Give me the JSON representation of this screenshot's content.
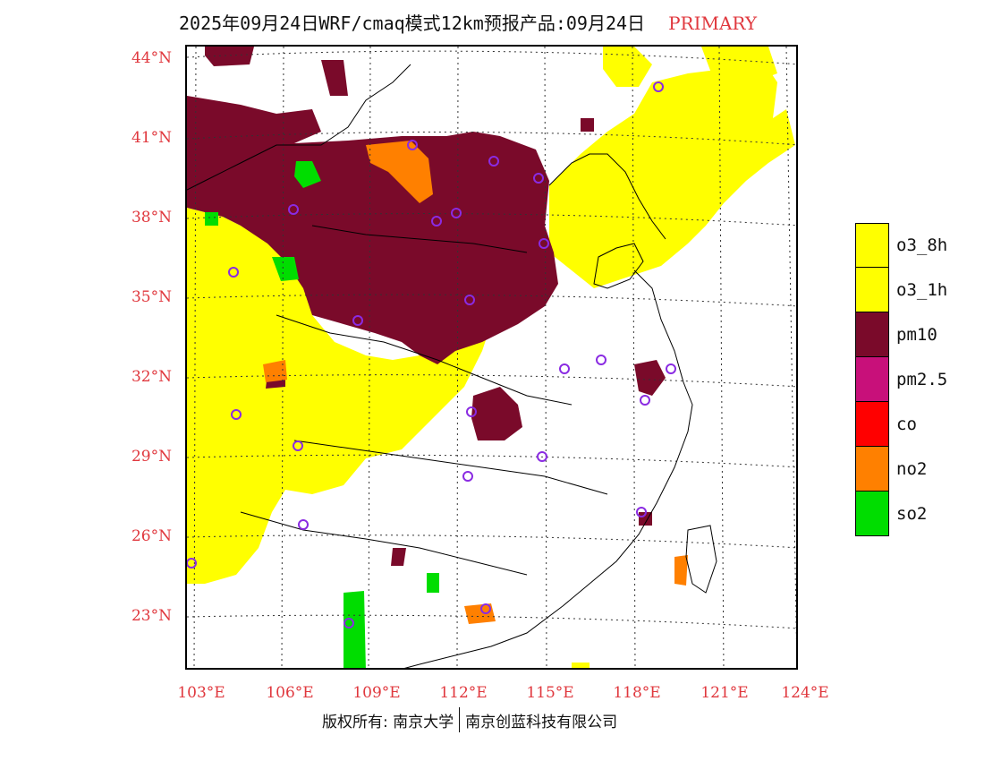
{
  "title": {
    "main": "2025年09月24日WRF/cmaq模式12km预报产品:09月24日",
    "status": "PRIMARY"
  },
  "colors": {
    "status": "#e0383e",
    "axis_label": "#e0383e",
    "o3_8h": "#ffff00",
    "o3_1h": "#ffff00",
    "pm10": "#7a0a2a",
    "pm2_5": "#c8107a",
    "co": "#ff0000",
    "no2": "#ff8000",
    "so2": "#00dd00",
    "station_marker": "#8a2be2"
  },
  "map": {
    "latitude_labels": [
      "44°N",
      "41°N",
      "38°N",
      "35°N",
      "32°N",
      "29°N",
      "26°N",
      "23°N"
    ],
    "longitude_labels": [
      "103°E",
      "106°E",
      "109°E",
      "112°E",
      "115°E",
      "118°E",
      "121°E",
      "124°E"
    ]
  },
  "legend": {
    "items": [
      {
        "label": "o3_8h",
        "color": "#ffff00"
      },
      {
        "label": "o3_1h",
        "color": "#ffff00"
      },
      {
        "label": "pm10",
        "color": "#7a0a2a"
      },
      {
        "label": "pm2.5",
        "color": "#c8107a"
      },
      {
        "label": "co",
        "color": "#ff0000"
      },
      {
        "label": "no2",
        "color": "#ff8000"
      },
      {
        "label": "so2",
        "color": "#00dd00"
      }
    ]
  },
  "footer": {
    "copyright": "版权所有: 南京大学",
    "company": "南京创蓝科技有限公司"
  }
}
